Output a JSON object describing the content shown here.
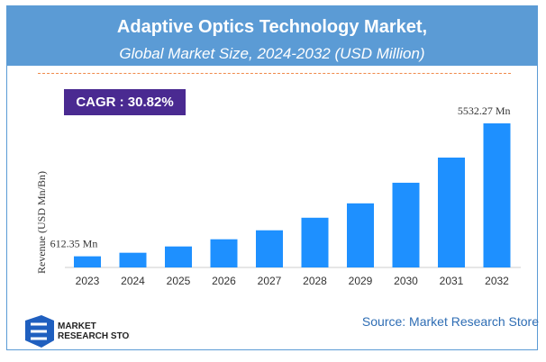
{
  "header": {
    "title": "Adaptive Optics Technology Market,",
    "subtitle": "Global Market Size, 2024-2032 (USD Million)"
  },
  "cagr": "CAGR :  30.82%",
  "source": "Source: Market Research Store",
  "logo": {
    "text": "MARKET RESEARCH STORE"
  },
  "colors": {
    "bar": "#1e90ff",
    "header": "#5b9bd5",
    "cagr": "#4a2a91"
  },
  "chart_data": {
    "type": "bar",
    "categories": [
      "2023",
      "2024",
      "2025",
      "2026",
      "2027",
      "2028",
      "2029",
      "2030",
      "2031",
      "2032"
    ],
    "values": [
      612.35,
      744,
      977,
      1243,
      1575,
      2040,
      2572,
      3335,
      4266,
      5532.27
    ],
    "data_labels": {
      "first": "612.35 Mn",
      "last": "5532.27 Mn"
    },
    "ylabel": "Revenue (USD Mn/Bn)",
    "ylim": [
      0,
      5532.27
    ],
    "grid": false
  }
}
